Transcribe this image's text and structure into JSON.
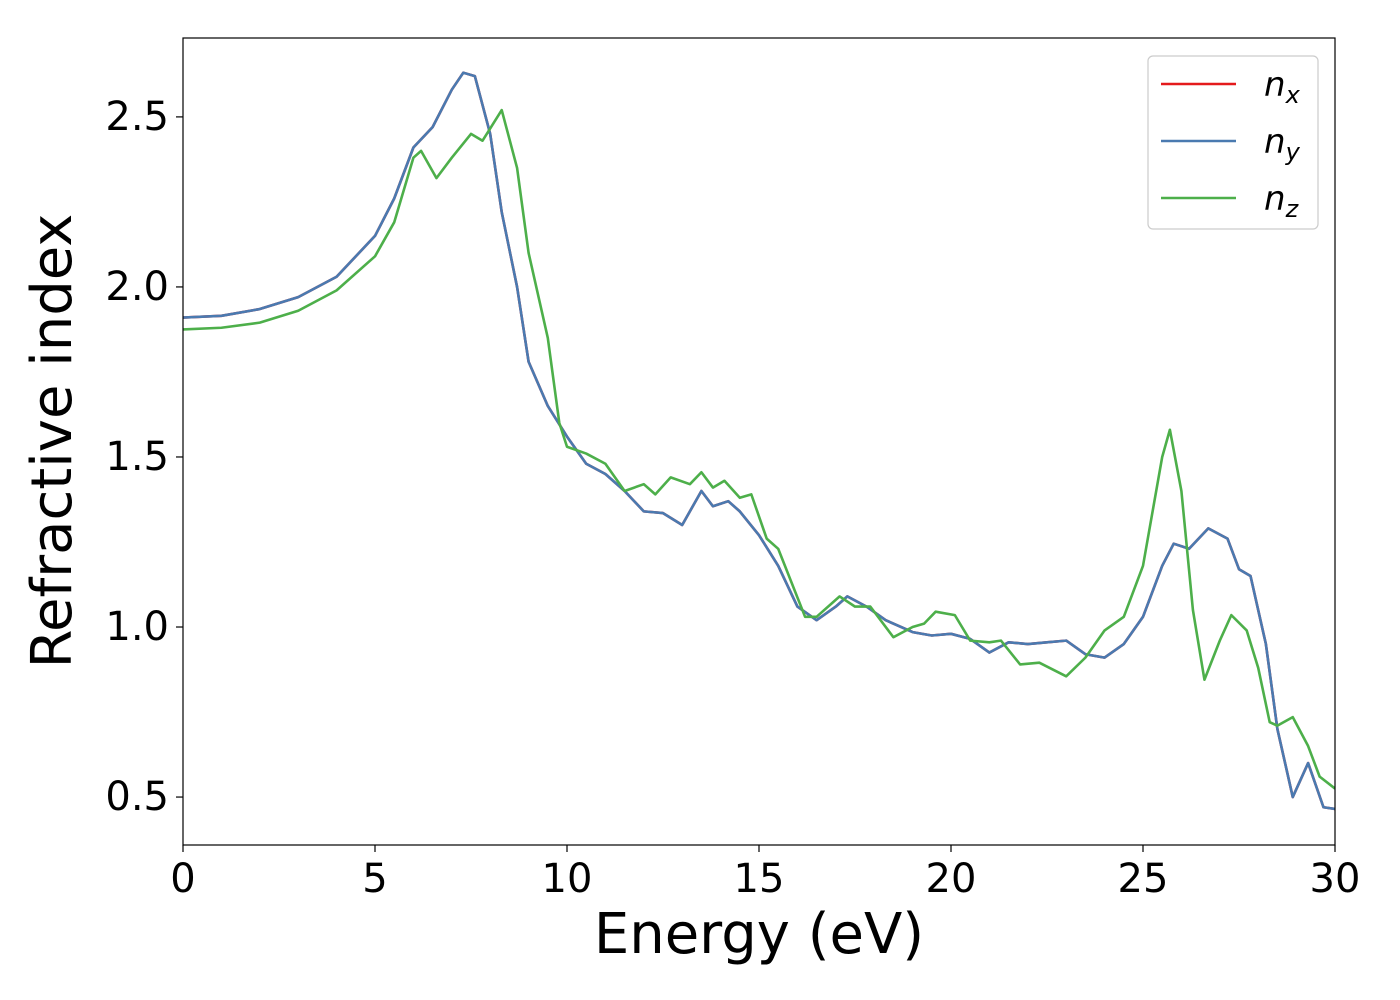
{
  "chart_data": {
    "type": "line",
    "xlabel": "Energy (eV)",
    "ylabel": "Refractive index",
    "xlim": [
      0,
      30
    ],
    "ylim": [
      0.359,
      2.732
    ],
    "xticks": [
      0,
      5,
      10,
      15,
      20,
      25,
      30
    ],
    "yticks": [
      0.5,
      1.0,
      1.5,
      2.0,
      2.5
    ],
    "legend": "upper right",
    "series": [
      {
        "name": "nx",
        "color": "#e41a1c",
        "x": [
          0,
          1,
          2,
          3,
          4,
          5,
          5.5,
          6,
          6.5,
          7,
          7.3,
          7.6,
          8,
          8.3,
          8.7,
          9,
          9.5,
          10,
          10.5,
          11,
          11.5,
          12,
          12.5,
          13,
          13.5,
          13.8,
          14.2,
          14.5,
          15,
          15.5,
          16,
          16.5,
          17,
          17.3,
          17.8,
          18.3,
          19,
          19.5,
          20,
          20.5,
          21,
          21.5,
          22,
          22.5,
          23,
          23.5,
          24,
          24.5,
          25,
          25.5,
          25.8,
          26.2,
          26.7,
          27.2,
          27.5,
          27.8,
          28.2,
          28.5,
          28.9,
          29.3,
          29.7,
          30
        ],
        "values": [
          1.91,
          1.915,
          1.935,
          1.97,
          2.03,
          2.15,
          2.26,
          2.41,
          2.47,
          2.58,
          2.63,
          2.62,
          2.45,
          2.22,
          2.0,
          1.78,
          1.65,
          1.56,
          1.48,
          1.45,
          1.4,
          1.34,
          1.335,
          1.3,
          1.4,
          1.355,
          1.37,
          1.34,
          1.27,
          1.18,
          1.06,
          1.02,
          1.06,
          1.09,
          1.06,
          1.02,
          0.985,
          0.975,
          0.98,
          0.965,
          0.925,
          0.955,
          0.95,
          0.955,
          0.96,
          0.92,
          0.91,
          0.95,
          1.03,
          1.18,
          1.245,
          1.23,
          1.29,
          1.26,
          1.17,
          1.15,
          0.95,
          0.7,
          0.5,
          0.6,
          0.47,
          0.465
        ]
      },
      {
        "name": "ny",
        "color": "#4a7ab0",
        "x": [
          0,
          1,
          2,
          3,
          4,
          5,
          5.5,
          6,
          6.5,
          7,
          7.3,
          7.6,
          8,
          8.3,
          8.7,
          9,
          9.5,
          10,
          10.5,
          11,
          11.5,
          12,
          12.5,
          13,
          13.5,
          13.8,
          14.2,
          14.5,
          15,
          15.5,
          16,
          16.5,
          17,
          17.3,
          17.8,
          18.3,
          19,
          19.5,
          20,
          20.5,
          21,
          21.5,
          22,
          22.5,
          23,
          23.5,
          24,
          24.5,
          25,
          25.5,
          25.8,
          26.2,
          26.7,
          27.2,
          27.5,
          27.8,
          28.2,
          28.5,
          28.9,
          29.3,
          29.7,
          30
        ],
        "values": [
          1.91,
          1.915,
          1.935,
          1.97,
          2.03,
          2.15,
          2.26,
          2.41,
          2.47,
          2.58,
          2.63,
          2.62,
          2.45,
          2.22,
          2.0,
          1.78,
          1.65,
          1.56,
          1.48,
          1.45,
          1.4,
          1.34,
          1.335,
          1.3,
          1.4,
          1.355,
          1.37,
          1.34,
          1.27,
          1.18,
          1.06,
          1.02,
          1.06,
          1.09,
          1.06,
          1.02,
          0.985,
          0.975,
          0.98,
          0.965,
          0.925,
          0.955,
          0.95,
          0.955,
          0.96,
          0.92,
          0.91,
          0.95,
          1.03,
          1.18,
          1.245,
          1.23,
          1.29,
          1.26,
          1.17,
          1.15,
          0.95,
          0.7,
          0.5,
          0.6,
          0.47,
          0.465
        ]
      },
      {
        "name": "nz",
        "color": "#4daf4a",
        "x": [
          0,
          1,
          2,
          3,
          4,
          5,
          5.5,
          6,
          6.2,
          6.6,
          7,
          7.5,
          7.8,
          8.3,
          8.7,
          9,
          9.5,
          9.8,
          10,
          10.5,
          11,
          11.5,
          12,
          12.3,
          12.7,
          13.2,
          13.5,
          13.8,
          14.1,
          14.5,
          14.8,
          15.2,
          15.5,
          16.2,
          16.5,
          17.1,
          17.5,
          17.9,
          18.5,
          19,
          19.3,
          19.6,
          20.1,
          20.5,
          21,
          21.3,
          21.8,
          22.3,
          23,
          23.5,
          24,
          24.5,
          25,
          25.5,
          25.7,
          26,
          26.3,
          26.6,
          27,
          27.3,
          27.7,
          28,
          28.3,
          28.5,
          28.9,
          29.3,
          29.6,
          30
        ],
        "values": [
          1.875,
          1.88,
          1.895,
          1.93,
          1.99,
          2.09,
          2.19,
          2.38,
          2.4,
          2.32,
          2.38,
          2.45,
          2.43,
          2.52,
          2.35,
          2.1,
          1.85,
          1.6,
          1.53,
          1.51,
          1.48,
          1.4,
          1.42,
          1.39,
          1.44,
          1.42,
          1.455,
          1.41,
          1.43,
          1.38,
          1.39,
          1.26,
          1.23,
          1.03,
          1.03,
          1.09,
          1.06,
          1.06,
          0.97,
          1.0,
          1.01,
          1.045,
          1.035,
          0.96,
          0.955,
          0.96,
          0.89,
          0.895,
          0.855,
          0.91,
          0.99,
          1.03,
          1.18,
          1.5,
          1.58,
          1.4,
          1.05,
          0.845,
          0.96,
          1.035,
          0.99,
          0.88,
          0.72,
          0.71,
          0.735,
          0.65,
          0.56,
          0.525
        ]
      }
    ]
  }
}
